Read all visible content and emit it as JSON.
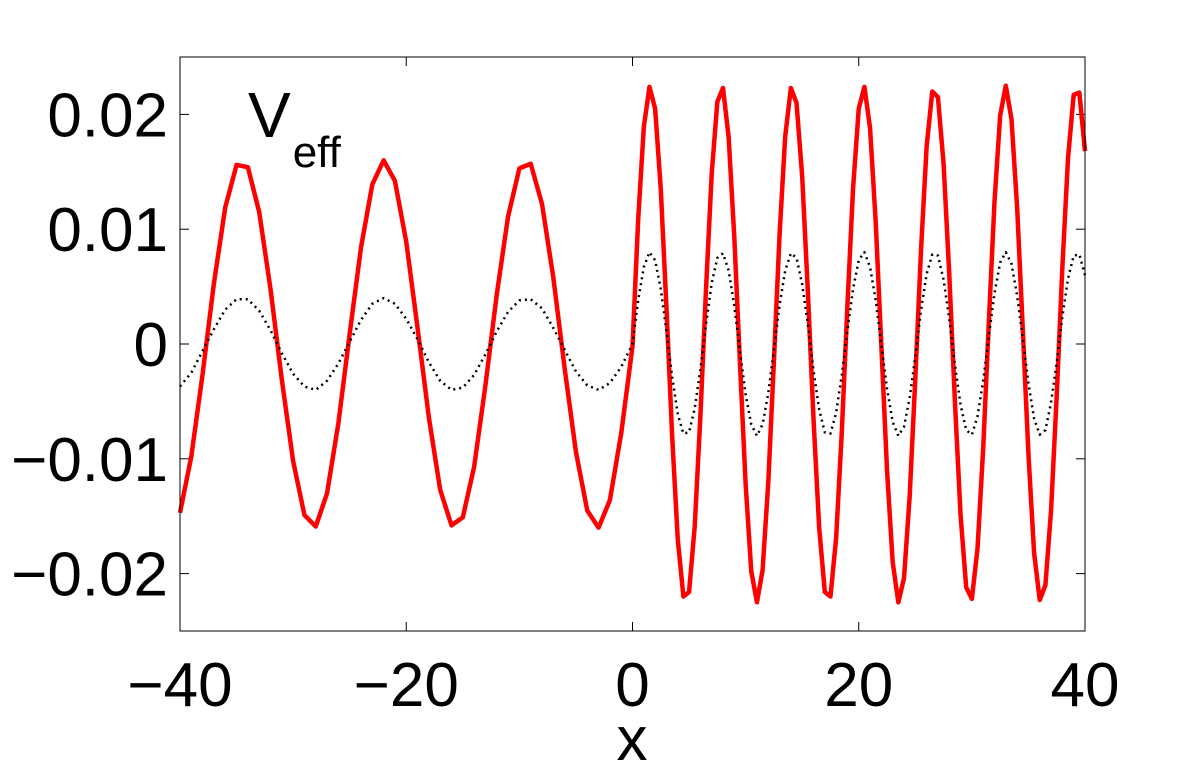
{
  "chart_data": {
    "type": "line",
    "annotation": {
      "text": "V",
      "subscript": "eff"
    },
    "xlabel": "x",
    "xlim": [
      -40,
      40
    ],
    "ylim": [
      -0.025,
      0.025
    ],
    "xticks": [
      {
        "value": -40,
        "label": "−40"
      },
      {
        "value": -20,
        "label": "−20"
      },
      0,
      20,
      40
    ],
    "yticks": [
      {
        "value": -0.02,
        "label": "−0.02"
      },
      {
        "value": -0.01,
        "label": "−0.01"
      },
      0,
      0.01,
      0.02
    ],
    "x": [
      -40,
      -39,
      -38,
      -37,
      -36,
      -35,
      -34,
      -33,
      -32,
      -31,
      -30,
      -29,
      -28,
      -27,
      -26,
      -25,
      -24,
      -23,
      -22,
      -21,
      -20,
      -19,
      -18,
      -17,
      -16,
      -15,
      -14,
      -13,
      -12,
      -11,
      -10,
      -9,
      -8,
      -7,
      -6,
      -5,
      -4,
      -3,
      -2,
      -1,
      0,
      0.5,
      1,
      1.5,
      2,
      2.5,
      3,
      3.5,
      4,
      4.5,
      5,
      5.5,
      6,
      6.5,
      7,
      7.5,
      8,
      8.5,
      9,
      9.5,
      10,
      10.5,
      11,
      11.5,
      12,
      12.5,
      13,
      13.5,
      14,
      14.5,
      15,
      15.5,
      16,
      16.5,
      17,
      17.5,
      18,
      18.5,
      19,
      19.5,
      20,
      20.5,
      21,
      21.5,
      22,
      22.5,
      23,
      23.5,
      24,
      24.5,
      25,
      25.5,
      26,
      26.5,
      27,
      27.5,
      28,
      28.5,
      29,
      29.5,
      30,
      30.5,
      31,
      31.5,
      32,
      32.5,
      33,
      33.5,
      34,
      34.5,
      35,
      35.5,
      36,
      36.5,
      37,
      37.5,
      38,
      38.5,
      39,
      39.5,
      40
    ],
    "series": [
      {
        "color": "#ff0000",
        "style": "solid",
        "values": [
          -0.0147,
          -0.0098,
          -0.0026,
          0.0053,
          0.0119,
          0.0156,
          0.0154,
          0.0115,
          0.0048,
          -0.0031,
          -0.0102,
          -0.0149,
          -0.0159,
          -0.013,
          -0.0069,
          0.0009,
          0.0084,
          0.0139,
          0.016,
          0.0142,
          0.0089,
          0.0014,
          -0.0064,
          -0.0127,
          -0.0158,
          -0.0151,
          -0.0107,
          -0.0036,
          0.0043,
          0.0111,
          0.0153,
          0.0157,
          0.0122,
          0.0058,
          -0.0021,
          -0.0094,
          -0.0145,
          -0.016,
          -0.0136,
          -0.0078,
          -0.0002,
          0.0108,
          0.0189,
          0.0224,
          0.0205,
          0.0135,
          0.0032,
          -0.0079,
          -0.017,
          -0.022,
          -0.0216,
          -0.0159,
          -0.0063,
          0.0048,
          0.0148,
          0.0211,
          0.0223,
          0.018,
          0.0093,
          -0.0017,
          -0.0122,
          -0.0198,
          -0.0225,
          -0.0197,
          -0.0121,
          -0.0015,
          0.0095,
          0.0181,
          0.0223,
          0.021,
          0.0146,
          0.0046,
          -0.0065,
          -0.016,
          -0.0216,
          -0.022,
          -0.0169,
          -0.0077,
          0.0034,
          0.0136,
          0.0205,
          0.0224,
          0.0188,
          0.0106,
          -0.0002,
          -0.011,
          -0.019,
          -0.0225,
          -0.0204,
          -0.0133,
          -0.003,
          0.0081,
          0.0172,
          0.022,
          0.0215,
          0.0157,
          0.0061,
          -0.005,
          -0.0149,
          -0.0212,
          -0.0222,
          -0.0178,
          -0.0091,
          0.0019,
          0.0124,
          0.0199,
          0.0225,
          0.0196,
          0.0119,
          0.0013,
          -0.0096,
          -0.0182,
          -0.0223,
          -0.021,
          -0.0145,
          -0.0045,
          0.0067,
          0.0162,
          0.0217,
          0.0219,
          0.0168
        ]
      },
      {
        "color": "#000000",
        "style": "dotted",
        "values": [
          -0.0037,
          -0.0025,
          -0.0006,
          0.0013,
          0.003,
          0.0039,
          0.0039,
          0.0029,
          0.0012,
          -0.0008,
          -0.0026,
          -0.0037,
          -0.004,
          -0.0032,
          -0.0017,
          0.0002,
          0.0021,
          0.0035,
          0.004,
          0.0035,
          0.0022,
          0.0004,
          -0.0016,
          -0.0032,
          -0.004,
          -0.0038,
          -0.0027,
          -0.0009,
          0.0011,
          0.0028,
          0.0038,
          0.0039,
          0.0031,
          0.0014,
          -0.0005,
          -0.0024,
          -0.0036,
          -0.004,
          -0.0034,
          -0.002,
          0.0,
          0.0038,
          0.0067,
          0.008,
          0.0073,
          0.0048,
          0.0011,
          -0.0028,
          -0.0061,
          -0.0078,
          -0.0077,
          -0.0056,
          -0.0022,
          0.0017,
          0.0053,
          0.0075,
          0.0079,
          0.0064,
          0.0033,
          -0.0006,
          -0.0044,
          -0.007,
          -0.008,
          -0.007,
          -0.0043,
          -0.0005,
          0.0034,
          0.0064,
          0.0079,
          0.0075,
          0.0052,
          0.0017,
          -0.0023,
          -0.0057,
          -0.0077,
          -0.0078,
          -0.006,
          -0.0027,
          0.0012,
          0.0048,
          0.0073,
          0.008,
          0.0067,
          0.0038,
          -0.0001,
          -0.0039,
          -0.0068,
          -0.008,
          -0.0072,
          -0.0047,
          -0.0011,
          0.0029,
          0.0061,
          0.0078,
          0.0077,
          0.0056,
          0.0022,
          -0.0018,
          -0.0053,
          -0.0075,
          -0.0079,
          -0.0063,
          -0.0032,
          0.0007,
          0.0044,
          0.0071,
          0.008,
          0.007,
          0.0042,
          0.0005,
          -0.0034,
          -0.0065,
          -0.0079,
          -0.0075,
          -0.0051,
          -0.0016,
          0.0024,
          0.0057,
          0.0077,
          0.0078,
          0.006
        ]
      }
    ]
  }
}
